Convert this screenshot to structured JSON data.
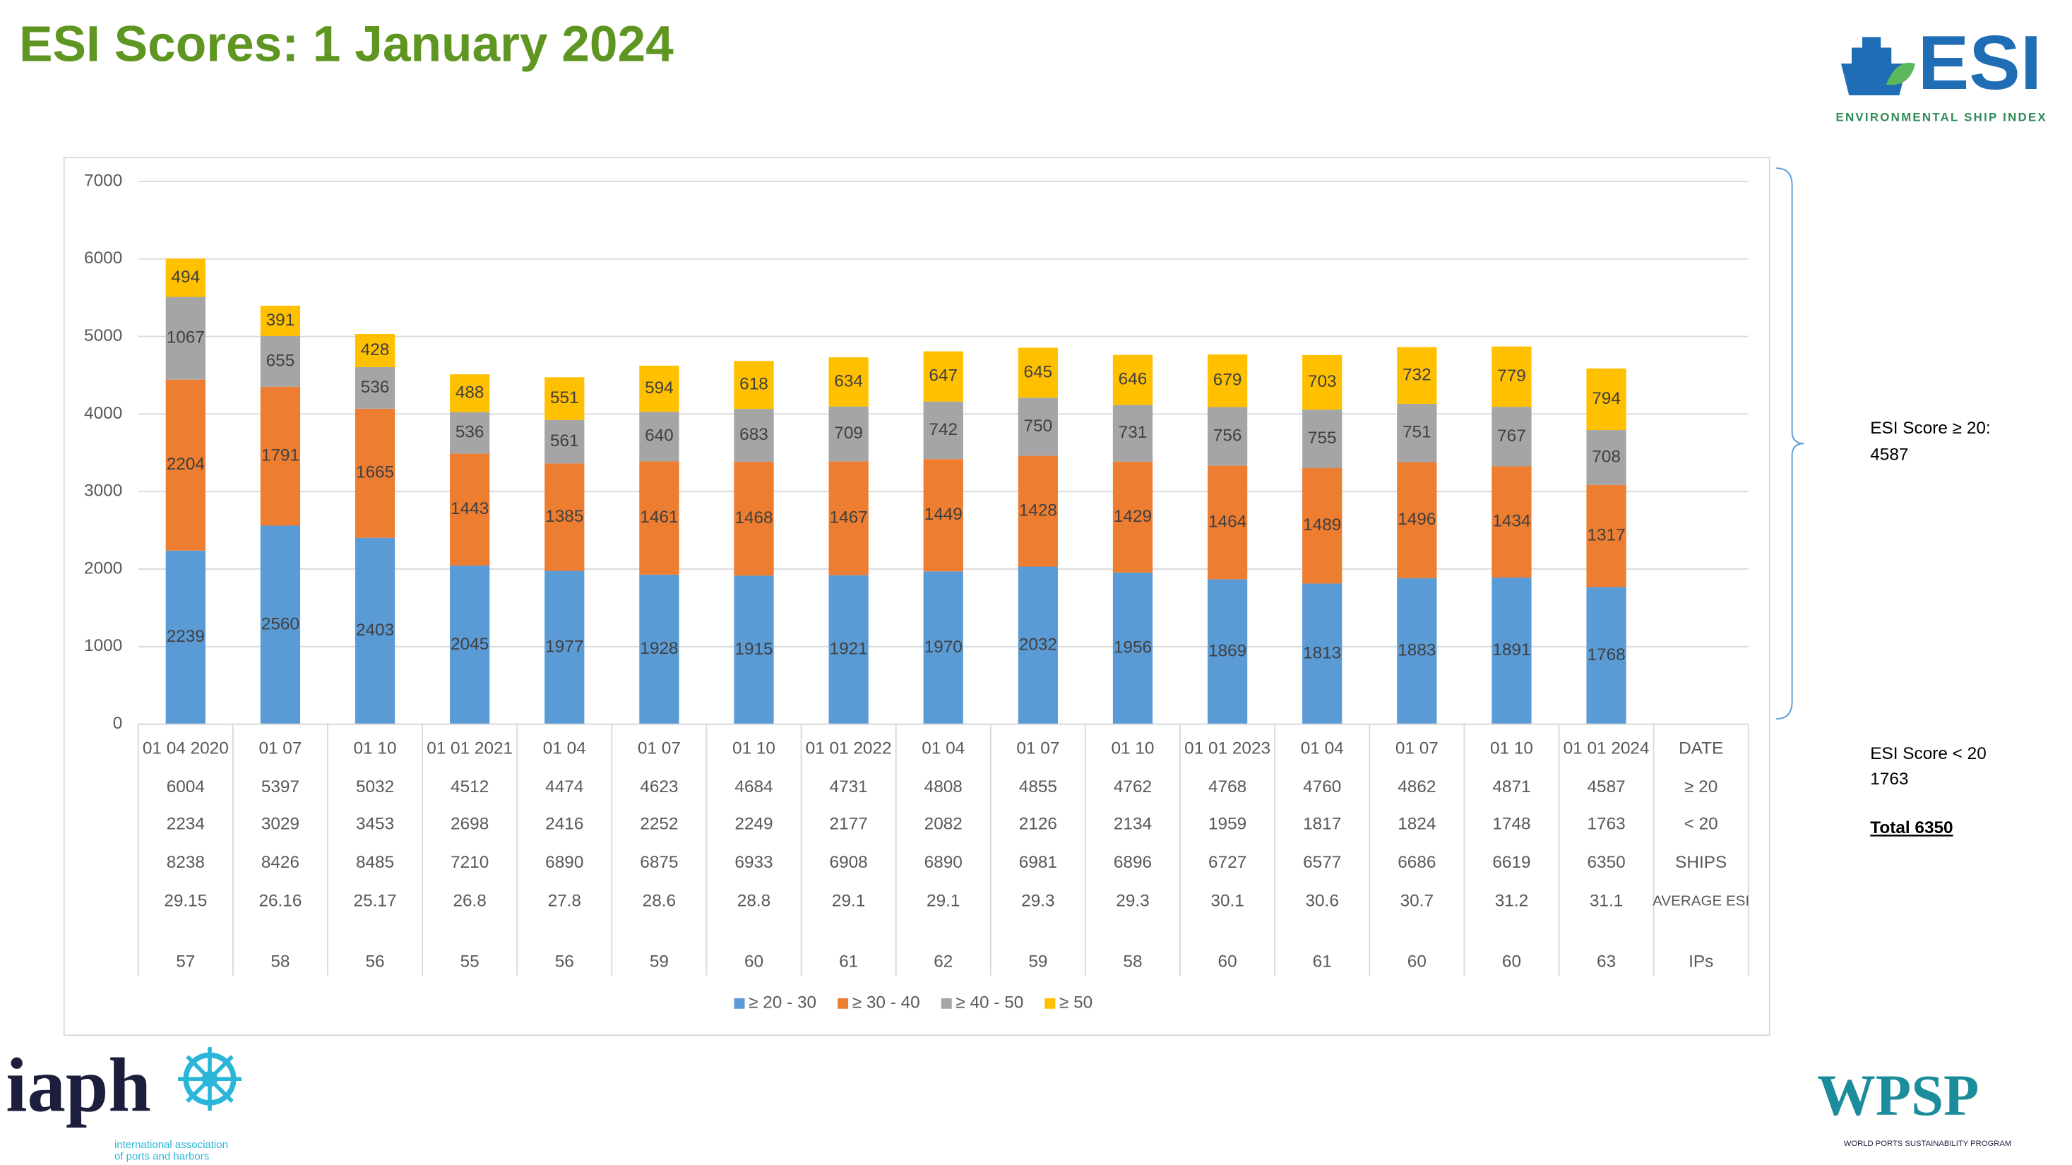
{
  "chart_data": {
    "type": "stacked-bar",
    "title": "ESI Scores: 1 January 2024",
    "category_label": "DATE",
    "categories": [
      "01 04 2020",
      "01 07",
      "01 10",
      "01 01 2021",
      "01 04",
      "01 07",
      "01 10",
      "01 01 2022",
      "01 04",
      "01 07",
      "01 10",
      "01 01 2023",
      "01 04",
      "01 07",
      "01 10",
      "01 01 2024"
    ],
    "series": [
      {
        "name": "≥ 20 - 30",
        "color": "#5b9bd5",
        "values": [
          2239,
          2560,
          2403,
          2045,
          1977,
          1928,
          1915,
          1921,
          1970,
          2032,
          1956,
          1869,
          1813,
          1883,
          1891,
          1768
        ]
      },
      {
        "name": "≥ 30 - 40",
        "color": "#ed7d31",
        "values": [
          2204,
          1791,
          1665,
          1443,
          1385,
          1461,
          1468,
          1467,
          1449,
          1428,
          1429,
          1464,
          1489,
          1496,
          1434,
          1317
        ]
      },
      {
        "name": "≥ 40 - 50",
        "color": "#a5a5a5",
        "values": [
          1067,
          655,
          536,
          536,
          561,
          640,
          683,
          709,
          742,
          750,
          731,
          756,
          755,
          751,
          767,
          708
        ]
      },
      {
        "name": "≥ 50",
        "color": "#ffc000",
        "values": [
          494,
          391,
          428,
          488,
          551,
          594,
          618,
          634,
          647,
          645,
          646,
          679,
          703,
          732,
          779,
          794
        ]
      }
    ],
    "ylim": [
      0,
      7000
    ],
    "yticks": [
      0,
      1000,
      2000,
      3000,
      4000,
      5000,
      6000,
      7000
    ],
    "grid": true,
    "table": [
      {
        "label": "≥ 20",
        "values": [
          6004,
          5397,
          5032,
          4512,
          4474,
          4623,
          4684,
          4731,
          4808,
          4855,
          4762,
          4768,
          4760,
          4862,
          4871,
          4587
        ]
      },
      {
        "label": "< 20",
        "values": [
          2234,
          3029,
          3453,
          2698,
          2416,
          2252,
          2249,
          2177,
          2082,
          2126,
          2134,
          1959,
          1817,
          1824,
          1748,
          1763
        ]
      },
      {
        "label": "SHIPS",
        "values": [
          8238,
          8426,
          8485,
          7210,
          6890,
          6875,
          6933,
          6908,
          6890,
          6981,
          6896,
          6727,
          6577,
          6686,
          6619,
          6350
        ]
      },
      {
        "label": "AVERAGE ESI",
        "values": [
          29.15,
          26.16,
          25.17,
          26.8,
          27.8,
          28.6,
          28.8,
          29.1,
          29.1,
          29.3,
          29.3,
          30.1,
          30.6,
          30.7,
          31.2,
          31.1
        ]
      },
      {
        "label": "IPs",
        "values": [
          57,
          58,
          56,
          55,
          56,
          59,
          60,
          61,
          62,
          59,
          58,
          60,
          61,
          60,
          60,
          63
        ]
      }
    ]
  },
  "annotations": [
    "ESI Score ≥ 20:",
    4587,
    "ESI Score < 20",
    1763,
    "Total 6350"
  ],
  "logos": {
    "esi": "ESI",
    "esi_sub": "ENVIRONMENTAL SHIP INDEX",
    "iaph": "iaph",
    "iaph_sub1": "international association",
    "iaph_sub2": "of ports and harbors",
    "wpsp": "WPSP",
    "wpsp_sub": "WORLD PORTS SUSTAINABILITY PROGRAM"
  }
}
